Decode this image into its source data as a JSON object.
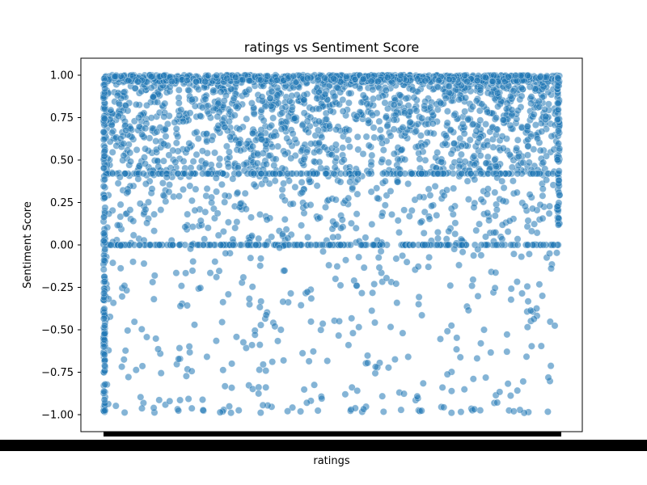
{
  "chart_data": {
    "type": "scatter",
    "title": "ratings vs Sentiment Score",
    "xlabel": "ratings",
    "ylabel": "Sentiment Score",
    "ylim": [
      -1.0,
      1.0
    ],
    "yticks": [
      "1.00",
      "0.75",
      "0.50",
      "0.25",
      "0.00",
      "−0.25",
      "−0.50",
      "−0.75",
      "−1.00"
    ],
    "ytick_values": [
      1.0,
      0.75,
      0.5,
      0.25,
      0.0,
      -0.25,
      -0.5,
      -0.75,
      -1.0
    ],
    "x_tick_labels": "overlapping, illegible (rendered as solid black band)",
    "marker_color": "#1f77b4",
    "marker_alpha": 0.55,
    "grid": false,
    "legend": "none",
    "series_summary": {
      "dense_band": [
        0.4,
        1.0
      ],
      "zero_line_value": 0.0,
      "sparse_range": [
        -1.0,
        0.4
      ]
    }
  }
}
